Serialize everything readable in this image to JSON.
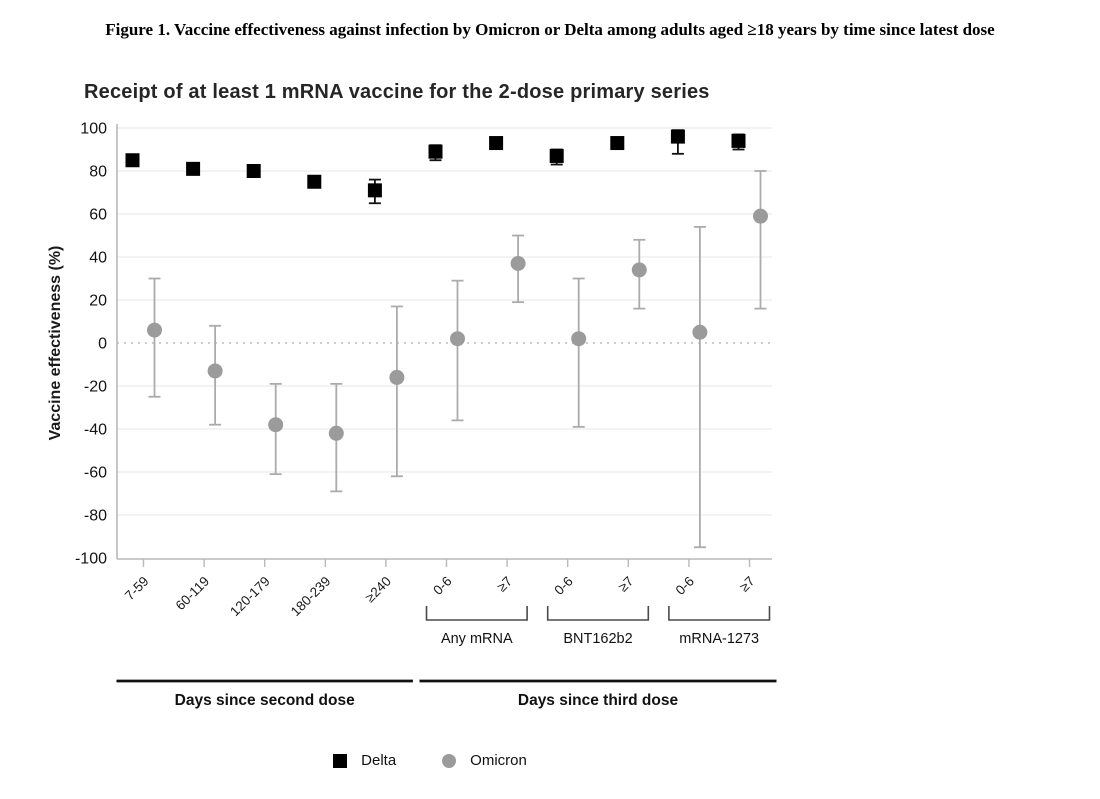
{
  "figure_title": "Figure 1. Vaccine effectiveness against infection by Omicron or Delta among adults aged ≥18 years by time since latest dose",
  "chart_data": {
    "type": "scatter",
    "title": "Receipt of at least 1 mRNA vaccine for the 2-dose primary series",
    "ylabel": "Vaccine effectiveness (%)",
    "ylim": [
      -100,
      100
    ],
    "ytick_interval": 20,
    "grid": true,
    "zero_line_style": "dotted",
    "legend_position": "bottom",
    "categories": [
      "7-59",
      "60-119",
      "120-179",
      "180-239",
      "≥240",
      "0-6",
      "≥7",
      "0-6",
      "≥7",
      "0-6",
      "≥7"
    ],
    "subgroups": [
      {
        "label": "Any mRNA",
        "from": 5,
        "to": 6
      },
      {
        "label": "BNT162b2",
        "from": 7,
        "to": 8
      },
      {
        "label": "mRNA-1273",
        "from": 9,
        "to": 10
      }
    ],
    "sections": [
      {
        "label": "Days since second dose",
        "from": 0,
        "to": 4
      },
      {
        "label": "Days since third dose",
        "from": 5,
        "to": 10
      }
    ],
    "series": [
      {
        "name": "Delta",
        "marker": "square",
        "color": "#000000",
        "error_bar_color": "#111111",
        "values": [
          85,
          81,
          80,
          75,
          71,
          89,
          93,
          87,
          93,
          96,
          94
        ],
        "ci_low": [
          null,
          null,
          null,
          null,
          65,
          85,
          null,
          83,
          null,
          88,
          90
        ],
        "ci_high": [
          null,
          null,
          null,
          null,
          76,
          92,
          null,
          90,
          null,
          99,
          97
        ]
      },
      {
        "name": "Omicron",
        "marker": "circle",
        "color": "#9b9b9b",
        "error_bar_color": "#ababab",
        "values": [
          6,
          -13,
          -38,
          -42,
          -16,
          2,
          37,
          2,
          34,
          5,
          59
        ],
        "ci_low": [
          -25,
          -38,
          -61,
          -69,
          -62,
          -36,
          19,
          -39,
          16,
          -95,
          16
        ],
        "ci_high": [
          30,
          8,
          -19,
          -19,
          17,
          29,
          50,
          30,
          48,
          54,
          80
        ]
      }
    ],
    "colors": {
      "grid": "#ececec",
      "zero_line": "#bdbdbd",
      "axis": "#b9b9b9",
      "tick_text": "#131313",
      "bracket": "#4a4a4a",
      "section_line": "#111111"
    }
  }
}
